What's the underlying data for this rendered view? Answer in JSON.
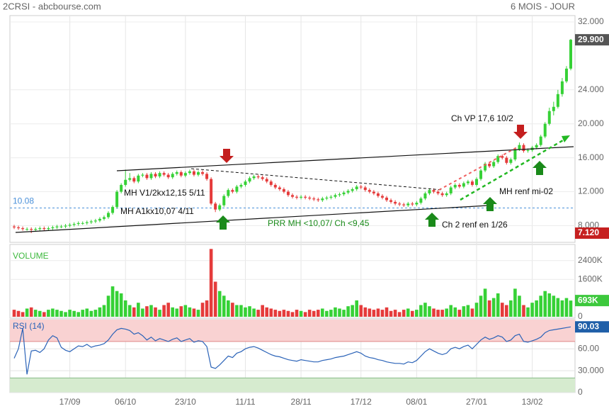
{
  "chart_data": [
    {
      "type": "candlestick",
      "title": "2CRSI - abcbourse.com",
      "subtitle": "6 MOIS - JOUR",
      "up_color": "#36d136",
      "down_color": "#e53b3b",
      "categories": [
        null,
        null,
        null,
        null,
        null,
        null,
        null,
        null,
        null,
        null,
        null,
        null,
        null,
        "17/09",
        null,
        null,
        null,
        null,
        null,
        null,
        null,
        null,
        null,
        null,
        null,
        null,
        "06/10",
        null,
        null,
        null,
        null,
        null,
        null,
        null,
        null,
        null,
        null,
        null,
        null,
        null,
        "23/10",
        null,
        null,
        null,
        null,
        null,
        null,
        null,
        null,
        null,
        null,
        null,
        null,
        null,
        "11/11",
        null,
        null,
        null,
        null,
        null,
        null,
        null,
        null,
        null,
        null,
        null,
        null,
        "28/11",
        null,
        null,
        null,
        null,
        null,
        null,
        null,
        null,
        null,
        null,
        null,
        null,
        null,
        "17/12",
        null,
        null,
        null,
        null,
        null,
        null,
        null,
        null,
        null,
        null,
        null,
        null,
        "08/01",
        null,
        null,
        null,
        null,
        null,
        null,
        null,
        null,
        null,
        null,
        null,
        null,
        null,
        "27/01",
        null,
        null,
        null,
        null,
        null,
        null,
        null,
        null,
        null,
        null,
        null,
        null,
        "13/02",
        null,
        null,
        null,
        null,
        null,
        null,
        null,
        null,
        null
      ],
      "open": [
        7.9,
        7.8,
        7.7,
        7.6,
        7.6,
        7.5,
        7.6,
        7.7,
        7.6,
        7.7,
        7.8,
        7.9,
        7.9,
        8.0,
        8.1,
        8.2,
        8.3,
        8.3,
        8.4,
        8.5,
        8.6,
        8.8,
        9.0,
        9.5,
        10.2,
        12.0,
        12.8,
        13.4,
        13.6,
        13.2,
        13.9,
        14.0,
        13.6,
        14.1,
        13.8,
        14.2,
        14.0,
        13.7,
        14.1,
        14.3,
        13.9,
        14.2,
        14.4,
        14.0,
        14.3,
        14.1,
        13.5,
        10.6,
        9.9,
        10.4,
        11.5,
        12.2,
        12.0,
        12.6,
        12.8,
        13.2,
        13.6,
        13.8,
        13.7,
        13.5,
        13.2,
        12.8,
        12.5,
        12.3,
        12.0,
        11.6,
        11.4,
        11.3,
        11.4,
        11.3,
        11.2,
        11.1,
        11.0,
        11.2,
        11.3,
        11.4,
        11.6,
        11.7,
        11.9,
        12.1,
        12.3,
        12.6,
        12.5,
        12.2,
        12.0,
        11.8,
        11.5,
        11.3,
        11.0,
        10.8,
        10.6,
        10.5,
        10.4,
        10.6,
        10.5,
        10.7,
        11.2,
        11.8,
        12.2,
        12.0,
        11.8,
        11.6,
        11.8,
        12.5,
        12.8,
        12.6,
        13.0,
        13.2,
        12.8,
        13.5,
        14.5,
        15.3,
        15.0,
        15.5,
        16.2,
        16.0,
        15.4,
        15.8,
        17.0,
        17.5,
        16.8,
        16.9,
        17.2,
        17.5,
        18.5,
        20.0,
        21.5,
        22.0,
        23.5,
        25.0,
        26.5
      ],
      "high": [
        8.1,
        8.0,
        7.9,
        7.8,
        7.8,
        7.8,
        7.9,
        7.9,
        7.9,
        8.0,
        8.1,
        8.1,
        8.2,
        8.3,
        8.4,
        8.5,
        8.5,
        8.6,
        8.7,
        8.8,
        9.0,
        9.2,
        9.7,
        10.4,
        12.2,
        13.0,
        14.6,
        14.2,
        13.8,
        14.1,
        14.2,
        14.2,
        14.3,
        14.3,
        14.4,
        14.4,
        14.2,
        14.3,
        14.5,
        14.5,
        14.4,
        14.6,
        14.6,
        14.5,
        14.5,
        14.3,
        13.7,
        10.8,
        10.6,
        11.7,
        12.4,
        12.4,
        12.8,
        13.0,
        13.4,
        13.8,
        14.0,
        14.0,
        13.9,
        13.7,
        13.4,
        13.0,
        12.7,
        12.5,
        12.2,
        11.8,
        11.6,
        11.6,
        11.6,
        11.5,
        11.4,
        11.3,
        11.4,
        11.5,
        11.6,
        11.8,
        11.9,
        12.1,
        12.3,
        12.5,
        12.8,
        12.8,
        12.7,
        12.4,
        12.2,
        12.0,
        11.7,
        11.5,
        11.2,
        11.0,
        10.8,
        10.7,
        10.8,
        10.8,
        10.9,
        11.4,
        12.0,
        12.4,
        12.4,
        12.2,
        12.0,
        12.0,
        12.7,
        13.0,
        13.0,
        13.2,
        13.4,
        13.4,
        13.7,
        14.7,
        15.5,
        15.5,
        15.7,
        16.4,
        16.4,
        16.2,
        16.0,
        17.2,
        17.8,
        17.7,
        17.1,
        17.4,
        17.7,
        18.7,
        20.2,
        21.9,
        22.6,
        24.0,
        25.4,
        26.8,
        30.0
      ],
      "low": [
        7.6,
        7.5,
        7.4,
        7.4,
        7.12,
        7.3,
        7.4,
        7.4,
        7.4,
        7.5,
        7.6,
        7.7,
        7.7,
        7.8,
        7.9,
        8.0,
        8.1,
        8.1,
        8.2,
        8.3,
        8.4,
        8.6,
        8.8,
        9.3,
        10.0,
        11.8,
        12.6,
        13.2,
        13.0,
        13.0,
        13.7,
        13.4,
        13.4,
        13.6,
        13.6,
        13.8,
        13.5,
        13.5,
        13.9,
        13.7,
        13.7,
        14.0,
        13.8,
        13.8,
        13.9,
        13.3,
        10.4,
        9.6,
        9.7,
        10.2,
        11.3,
        11.8,
        11.8,
        12.4,
        12.6,
        13.0,
        13.4,
        13.5,
        13.3,
        13.0,
        12.6,
        12.3,
        12.1,
        11.8,
        11.4,
        11.2,
        11.1,
        11.1,
        11.1,
        11.0,
        10.9,
        10.8,
        10.8,
        11.0,
        11.1,
        11.2,
        11.4,
        11.5,
        11.7,
        11.9,
        12.1,
        12.3,
        12.0,
        11.8,
        11.6,
        11.3,
        11.1,
        10.8,
        10.6,
        10.4,
        10.3,
        10.2,
        10.2,
        10.3,
        10.3,
        10.5,
        11.0,
        11.6,
        11.8,
        11.6,
        11.4,
        11.4,
        11.6,
        12.3,
        12.4,
        12.4,
        12.8,
        12.6,
        12.6,
        13.3,
        14.3,
        14.8,
        14.8,
        15.3,
        15.8,
        15.2,
        15.2,
        15.6,
        16.8,
        16.6,
        16.6,
        16.7,
        17.0,
        17.3,
        18.3,
        19.8,
        21.0,
        21.8,
        23.2,
        24.8,
        26.3
      ],
      "close": [
        7.8,
        7.7,
        7.6,
        7.6,
        7.5,
        7.6,
        7.7,
        7.6,
        7.7,
        7.8,
        7.9,
        7.9,
        8.0,
        8.1,
        8.2,
        8.3,
        8.3,
        8.4,
        8.5,
        8.6,
        8.8,
        9.0,
        9.5,
        10.2,
        12.0,
        12.8,
        13.4,
        13.6,
        13.2,
        13.9,
        14.0,
        13.6,
        14.1,
        13.8,
        14.2,
        14.0,
        13.7,
        14.1,
        14.3,
        13.9,
        14.2,
        14.4,
        14.0,
        14.3,
        14.1,
        13.5,
        10.6,
        9.9,
        10.4,
        11.5,
        12.2,
        12.0,
        12.6,
        12.8,
        13.2,
        13.6,
        13.8,
        13.7,
        13.5,
        13.2,
        12.8,
        12.5,
        12.3,
        12.0,
        11.6,
        11.4,
        11.3,
        11.4,
        11.3,
        11.2,
        11.1,
        11.0,
        11.2,
        11.3,
        11.4,
        11.6,
        11.7,
        11.9,
        12.1,
        12.3,
        12.6,
        12.5,
        12.2,
        12.0,
        11.8,
        11.5,
        11.3,
        11.0,
        10.8,
        10.6,
        10.5,
        10.4,
        10.6,
        10.5,
        10.7,
        11.2,
        11.8,
        12.2,
        12.0,
        11.8,
        11.6,
        11.8,
        12.5,
        12.8,
        12.6,
        13.0,
        13.2,
        12.8,
        13.5,
        14.5,
        15.3,
        15.0,
        15.5,
        16.2,
        16.0,
        15.4,
        15.8,
        17.0,
        17.5,
        16.8,
        16.9,
        17.2,
        17.5,
        18.5,
        20.0,
        21.5,
        22.0,
        23.5,
        25.0,
        26.5,
        29.9
      ],
      "ylim": [
        6.2,
        32.75
      ],
      "yticks": [
        {
          "value": 8,
          "label": "8.000"
        },
        {
          "value": 12,
          "label": "12.000"
        },
        {
          "value": 16,
          "label": "16.000"
        },
        {
          "value": 20,
          "label": "20.000"
        },
        {
          "value": 24,
          "label": "24.000"
        },
        {
          "value": 32,
          "label": "32.000"
        }
      ],
      "reference": {
        "value": 10.08,
        "label": "10.08",
        "color": "#4a90d9"
      },
      "last_label": {
        "value": 29.9,
        "label": "29.900",
        "color": "#555555"
      },
      "low_label": {
        "value": 7.12,
        "label": "7.120",
        "color": "#c62020"
      },
      "annotations": [
        "MH V1/2kx12,15 5/11",
        "MH A1kx10,07 4/11",
        "PRR MH <10,07/ Ch <9,45",
        "Ch 2 renf en 1/26",
        "MH renf mi-02",
        "Ch VP 17,6 10/2"
      ]
    },
    {
      "type": "bar",
      "title": "VOLUME",
      "title_color": "#3cb83c",
      "values": [
        300,
        250,
        200,
        350,
        400,
        300,
        250,
        200,
        300,
        350,
        300,
        250,
        200,
        300,
        250,
        200,
        300,
        350,
        250,
        300,
        400,
        500,
        900,
        1300,
        1100,
        1000,
        700,
        500,
        400,
        600,
        350,
        450,
        500,
        400,
        300,
        500,
        600,
        400,
        350,
        450,
        500,
        400,
        350,
        300,
        600,
        700,
        2900,
        1500,
        1100,
        900,
        700,
        600,
        500,
        500,
        400,
        450,
        350,
        300,
        500,
        400,
        350,
        300,
        250,
        300,
        250,
        200,
        300,
        250,
        200,
        300,
        250,
        300,
        350,
        250,
        300,
        400,
        350,
        300,
        450,
        500,
        700,
        500,
        400,
        350,
        300,
        350,
        300,
        400,
        250,
        300,
        200,
        300,
        350,
        250,
        300,
        500,
        600,
        450,
        350,
        300,
        300,
        350,
        500,
        400,
        300,
        450,
        500,
        350,
        600,
        900,
        1200,
        700,
        800,
        1000,
        600,
        500,
        700,
        1200,
        900,
        500,
        400,
        600,
        700,
        900,
        1100,
        1000,
        900,
        800,
        700,
        800,
        693
      ],
      "ylim": [
        0,
        3000
      ],
      "yticks": [
        0,
        {
          "value": 1600,
          "label": "1600K"
        },
        {
          "value": 2400,
          "label": "2400K"
        }
      ],
      "last_label": {
        "value": 693,
        "label": "693K",
        "color": "#3cc83c"
      }
    },
    {
      "type": "line",
      "title": "RSI (14)",
      "color": "#2b63b8",
      "values": [
        47,
        60,
        88,
        25,
        57,
        58,
        55,
        60,
        72,
        78,
        75,
        62,
        58,
        56,
        60,
        64,
        63,
        66,
        62,
        64,
        65,
        67,
        72,
        80,
        86,
        88,
        87,
        85,
        80,
        82,
        78,
        72,
        76,
        71,
        74,
        72,
        70,
        73,
        75,
        70,
        72,
        74,
        69,
        71,
        70,
        63,
        35,
        33,
        38,
        44,
        50,
        48,
        54,
        56,
        60,
        62,
        63,
        61,
        58,
        55,
        52,
        50,
        49,
        47,
        45,
        44,
        43,
        45,
        44,
        43,
        42,
        42,
        44,
        45,
        46,
        48,
        49,
        50,
        52,
        54,
        56,
        54,
        50,
        48,
        47,
        45,
        44,
        42,
        41,
        40,
        40,
        39,
        42,
        41,
        44,
        50,
        56,
        60,
        57,
        54,
        52,
        54,
        60,
        62,
        60,
        63,
        65,
        60,
        66,
        72,
        76,
        73,
        75,
        78,
        76,
        70,
        72,
        78,
        80,
        70,
        69,
        71,
        73,
        76,
        82,
        85,
        86,
        87,
        88,
        89,
        90.03
      ],
      "ylim": [
        0,
        100
      ],
      "yticks": [
        0,
        {
          "value": 30,
          "label": "30.000"
        },
        {
          "value": 60,
          "label": "60.00"
        }
      ],
      "overbought": 70,
      "oversold": 20,
      "last_label": {
        "value": 90.03,
        "label": "90.03",
        "color": "#1f5fa8"
      }
    }
  ]
}
